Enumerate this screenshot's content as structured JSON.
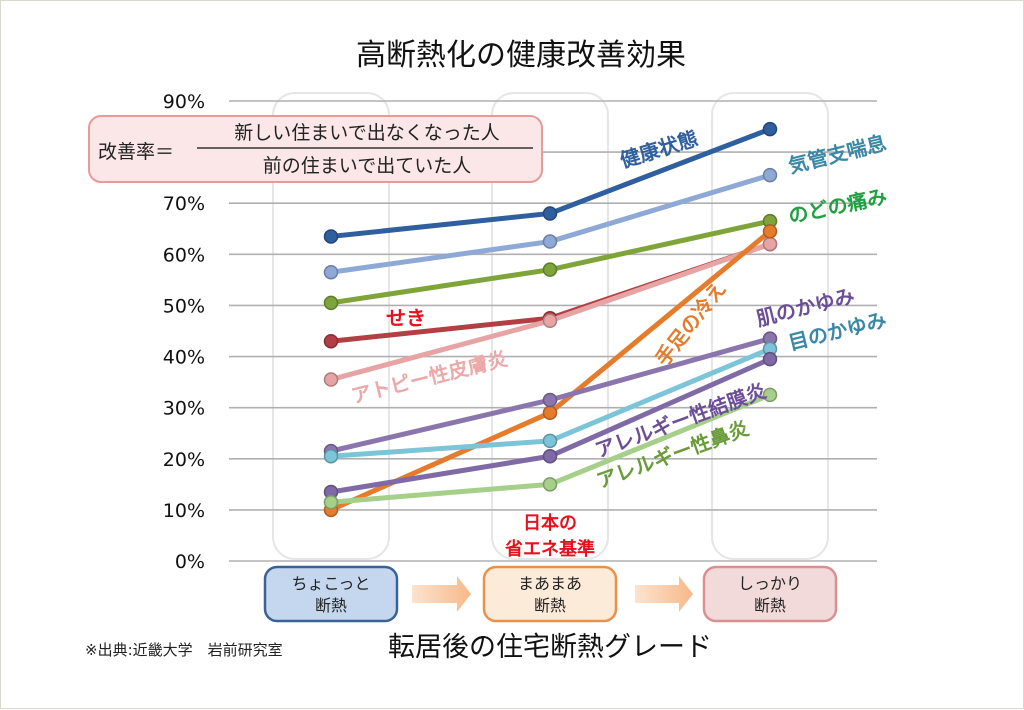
{
  "chart_data": {
    "type": "line",
    "title": "高断熱化の健康改善効果",
    "xlabel": "転居後の住宅断熱グレード",
    "ylabel": "",
    "ylim": [
      0,
      90
    ],
    "y_ticks": [
      "0%",
      "10%",
      "20%",
      "30%",
      "40%",
      "50%",
      "60%",
      "70%",
      "80%",
      "90%"
    ],
    "y_tick_values": [
      0,
      10,
      20,
      30,
      40,
      50,
      60,
      70,
      80,
      90
    ],
    "categories": [
      "ちょこっと\n断熱",
      "まあまあ\n断熱",
      "しっかり\n断熱"
    ],
    "series": [
      {
        "name": "健康状態",
        "values": [
          63.5,
          68,
          84.5
        ],
        "color": "#2f5f9e"
      },
      {
        "name": "気管支喘息",
        "values": [
          56.5,
          62.5,
          75.5
        ],
        "color": "#8ea9d6"
      },
      {
        "name": "のどの痛み",
        "values": [
          50.5,
          57,
          66.5
        ],
        "color": "#7ea43a"
      },
      {
        "name": "せき",
        "values": [
          43,
          47.5,
          62
        ],
        "color": "#b23f44"
      },
      {
        "name": "アトピー性皮膚炎",
        "values": [
          35.5,
          47,
          62
        ],
        "color": "#e7a4a4"
      },
      {
        "name": "手足の冷え",
        "values": [
          10,
          29,
          64.5
        ],
        "color": "#e57c2c"
      },
      {
        "name": "肌のかゆみ",
        "values": [
          21.5,
          31.5,
          43.5
        ],
        "color": "#8a76ad"
      },
      {
        "name": "目のかゆみ",
        "values": [
          20.5,
          23.5,
          41.5
        ],
        "color": "#7cc4d8"
      },
      {
        "name": "アレルギー性結膜炎",
        "values": [
          13.5,
          20.5,
          39.5
        ],
        "color": "#7f6aa6"
      },
      {
        "name": "アレルギー性鼻炎",
        "values": [
          11.5,
          15,
          32.5
        ],
        "color": "#a6cf8a"
      }
    ],
    "label_colors": {
      "健康状態": "#2f5f9e",
      "気管支喘息": "#3a87a6",
      "のどの痛み": "#20a040",
      "せき": "#e8101e",
      "アトピー性皮膚炎": "#eba9a9",
      "手足の冷え": "#e57c2c",
      "肌のかゆみ": "#6b4e96",
      "目のかゆみ": "#3a87a6",
      "アレルギー性結膜炎": "#6b4e96",
      "アレルギー性鼻炎": "#6a9b3a"
    },
    "annotations": {
      "formula_label": "改善率＝",
      "formula_numerator": "新しい住まいで出なくなった人",
      "formula_denominator": "前の住まいで出ていた人",
      "standard_line1": "日本の",
      "standard_line2": "省エネ基準",
      "source": "※出典:近畿大学　岩前研究室"
    }
  }
}
